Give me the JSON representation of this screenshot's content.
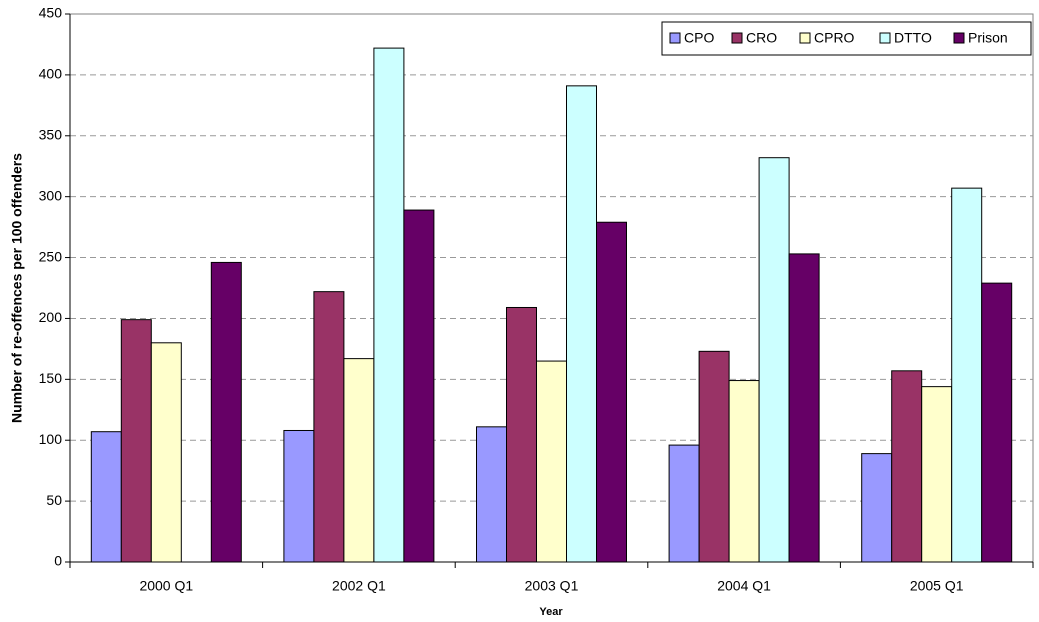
{
  "chart_data": {
    "type": "bar",
    "x_label": "Year",
    "y_label": "Number of re-offences per 100 offenders",
    "categories": [
      "2000 Q1",
      "2002 Q1",
      "2003 Q1",
      "2004 Q1",
      "2005 Q1"
    ],
    "series": [
      {
        "name": "CPO",
        "color": "#9999ff",
        "values": [
          107,
          108,
          111,
          96,
          89
        ]
      },
      {
        "name": "CRO",
        "color": "#993366",
        "values": [
          199,
          222,
          209,
          173,
          157
        ]
      },
      {
        "name": "CPRO",
        "color": "#ffffcc",
        "values": [
          180,
          167,
          165,
          149,
          144
        ]
      },
      {
        "name": "DTTO",
        "color": "#ccffff",
        "values": [
          null,
          422,
          391,
          332,
          307
        ]
      },
      {
        "name": "Prison",
        "color": "#660066",
        "values": [
          246,
          289,
          279,
          253,
          229
        ]
      }
    ],
    "ylim": [
      0,
      450
    ],
    "yticks": [
      0,
      50,
      100,
      150,
      200,
      250,
      300,
      350,
      400,
      450
    ],
    "grid": true,
    "legend_position": "top-right"
  }
}
